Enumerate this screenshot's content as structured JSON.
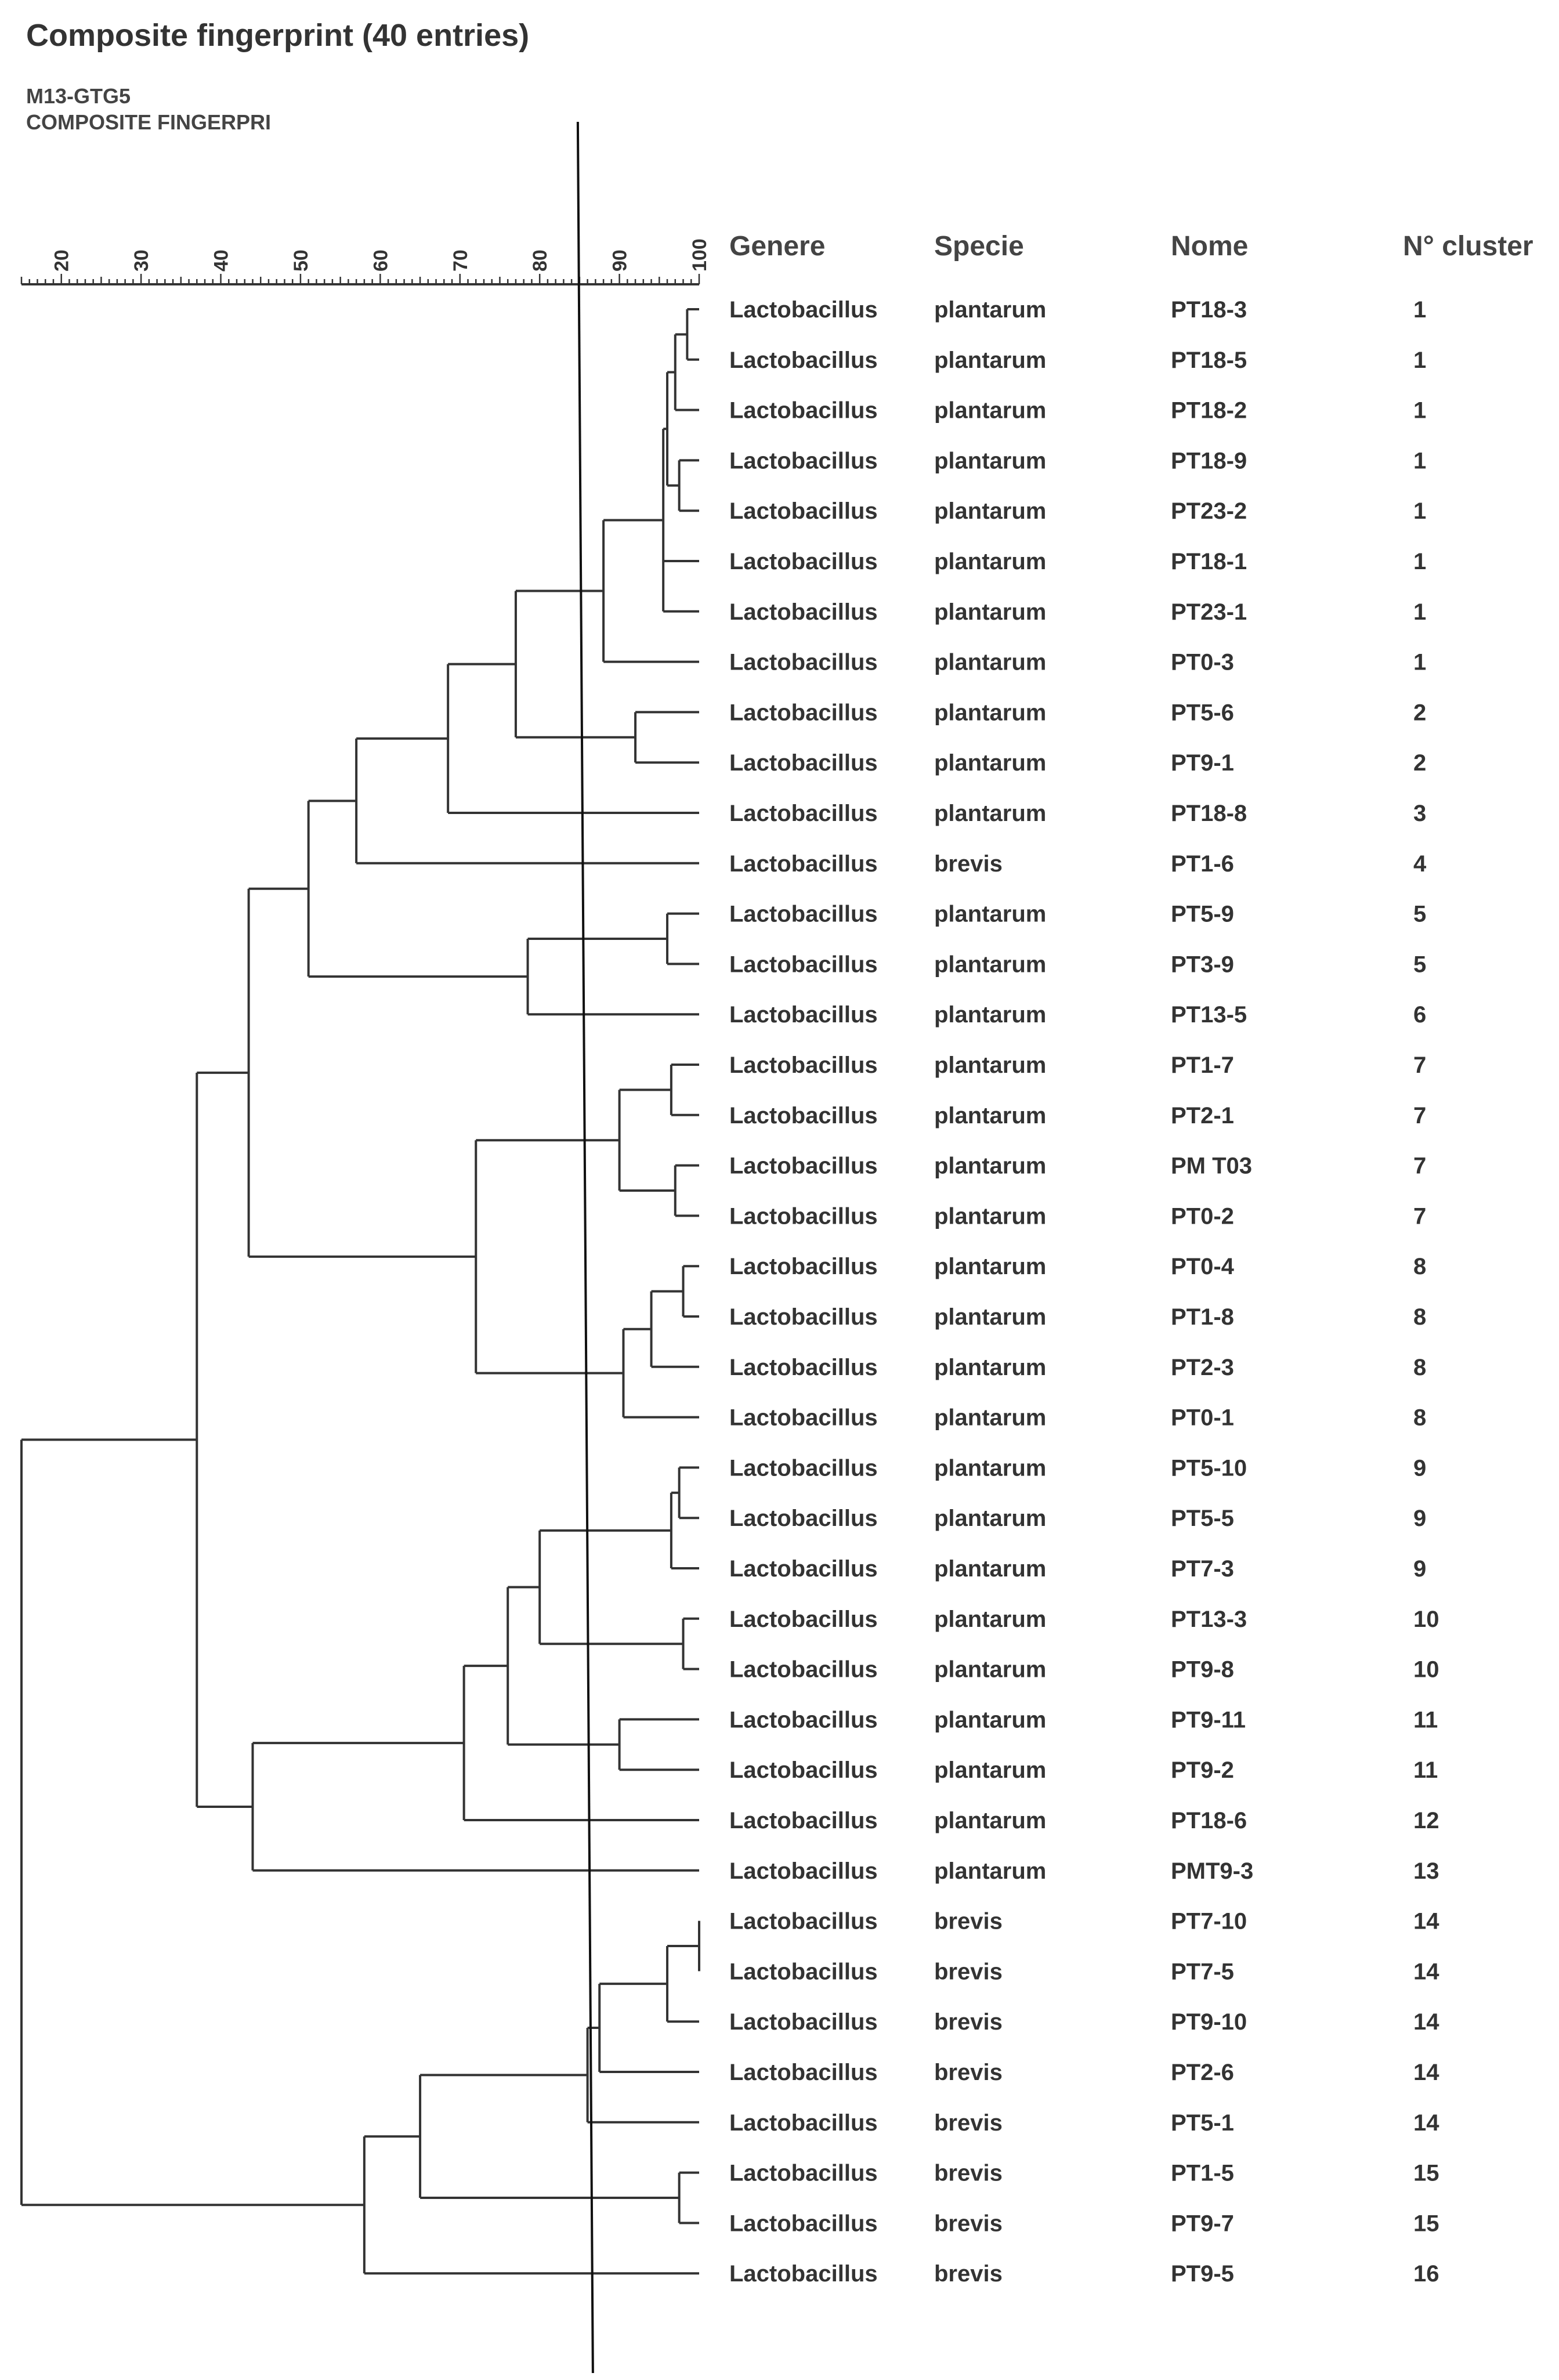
{
  "header": {
    "title": "Composite fingerprint (40 entries)",
    "subtitle_1": "M13-GTG5",
    "subtitle_2": "COMPOSITE FINGERPRI"
  },
  "columns": [
    "Genere",
    "Specie",
    "Nome",
    "N° cluster"
  ],
  "axis": {
    "min": 15,
    "max": 100,
    "ticks": [
      20,
      30,
      40,
      50,
      60,
      70,
      80,
      90,
      100
    ],
    "cutoff": 85
  },
  "entries": [
    {
      "genere": "Lactobacillus",
      "specie": "plantarum",
      "nome": "PT18-3",
      "cluster": "1"
    },
    {
      "genere": "Lactobacillus",
      "specie": "plantarum",
      "nome": "PT18-5",
      "cluster": "1"
    },
    {
      "genere": "Lactobacillus",
      "specie": "plantarum",
      "nome": "PT18-2",
      "cluster": "1"
    },
    {
      "genere": "Lactobacillus",
      "specie": "plantarum",
      "nome": "PT18-9",
      "cluster": "1"
    },
    {
      "genere": "Lactobacillus",
      "specie": "plantarum",
      "nome": "PT23-2",
      "cluster": "1"
    },
    {
      "genere": "Lactobacillus",
      "specie": "plantarum",
      "nome": "PT18-1",
      "cluster": "1"
    },
    {
      "genere": "Lactobacillus",
      "specie": "plantarum",
      "nome": "PT23-1",
      "cluster": "1"
    },
    {
      "genere": "Lactobacillus",
      "specie": "plantarum",
      "nome": "PT0-3",
      "cluster": "1"
    },
    {
      "genere": "Lactobacillus",
      "specie": "plantarum",
      "nome": "PT5-6",
      "cluster": "2"
    },
    {
      "genere": "Lactobacillus",
      "specie": "plantarum",
      "nome": "PT9-1",
      "cluster": "2"
    },
    {
      "genere": "Lactobacillus",
      "specie": "plantarum",
      "nome": "PT18-8",
      "cluster": "3"
    },
    {
      "genere": "Lactobacillus",
      "specie": "brevis",
      "nome": "PT1-6",
      "cluster": "4"
    },
    {
      "genere": "Lactobacillus",
      "specie": "plantarum",
      "nome": "PT5-9",
      "cluster": "5"
    },
    {
      "genere": "Lactobacillus",
      "specie": "plantarum",
      "nome": "PT3-9",
      "cluster": "5"
    },
    {
      "genere": "Lactobacillus",
      "specie": "plantarum",
      "nome": "PT13-5",
      "cluster": "6"
    },
    {
      "genere": "Lactobacillus",
      "specie": "plantarum",
      "nome": "PT1-7",
      "cluster": "7"
    },
    {
      "genere": "Lactobacillus",
      "specie": "plantarum",
      "nome": "PT2-1",
      "cluster": "7"
    },
    {
      "genere": "Lactobacillus",
      "specie": "plantarum",
      "nome": "PM T03",
      "cluster": "7"
    },
    {
      "genere": "Lactobacillus",
      "specie": "plantarum",
      "nome": "PT0-2",
      "cluster": "7"
    },
    {
      "genere": "Lactobacillus",
      "specie": "plantarum",
      "nome": "PT0-4",
      "cluster": "8"
    },
    {
      "genere": "Lactobacillus",
      "specie": "plantarum",
      "nome": "PT1-8",
      "cluster": "8"
    },
    {
      "genere": "Lactobacillus",
      "specie": "plantarum",
      "nome": "PT2-3",
      "cluster": "8"
    },
    {
      "genere": "Lactobacillus",
      "specie": "plantarum",
      "nome": "PT0-1",
      "cluster": "8"
    },
    {
      "genere": "Lactobacillus",
      "specie": "plantarum",
      "nome": "PT5-10",
      "cluster": "9"
    },
    {
      "genere": "Lactobacillus",
      "specie": "plantarum",
      "nome": "PT5-5",
      "cluster": "9"
    },
    {
      "genere": "Lactobacillus",
      "specie": "plantarum",
      "nome": "PT7-3",
      "cluster": "9"
    },
    {
      "genere": "Lactobacillus",
      "specie": "plantarum",
      "nome": "PT13-3",
      "cluster": "10"
    },
    {
      "genere": "Lactobacillus",
      "specie": "plantarum",
      "nome": "PT9-8",
      "cluster": "10"
    },
    {
      "genere": "Lactobacillus",
      "specie": "plantarum",
      "nome": "PT9-11",
      "cluster": "11"
    },
    {
      "genere": "Lactobacillus",
      "specie": "plantarum",
      "nome": "PT9-2",
      "cluster": "11"
    },
    {
      "genere": "Lactobacillus",
      "specie": "plantarum",
      "nome": "PT18-6",
      "cluster": "12"
    },
    {
      "genere": "Lactobacillus",
      "specie": "plantarum",
      "nome": "PMT9-3",
      "cluster": "13"
    },
    {
      "genere": "Lactobacillus",
      "specie": "brevis",
      "nome": "PT7-10",
      "cluster": "14"
    },
    {
      "genere": "Lactobacillus",
      "specie": "brevis",
      "nome": "PT7-5",
      "cluster": "14"
    },
    {
      "genere": "Lactobacillus",
      "specie": "brevis",
      "nome": "PT9-10",
      "cluster": "14"
    },
    {
      "genere": "Lactobacillus",
      "specie": "brevis",
      "nome": "PT2-6",
      "cluster": "14"
    },
    {
      "genere": "Lactobacillus",
      "specie": "brevis",
      "nome": "PT5-1",
      "cluster": "14"
    },
    {
      "genere": "Lactobacillus",
      "specie": "brevis",
      "nome": "PT1-5",
      "cluster": "15"
    },
    {
      "genere": "Lactobacillus",
      "specie": "brevis",
      "nome": "PT9-7",
      "cluster": "15"
    },
    {
      "genere": "Lactobacillus",
      "specie": "brevis",
      "nome": "PT9-5",
      "cluster": "16"
    }
  ],
  "dendrogram": [
    {
      "id": "n1",
      "sim": 98.5,
      "children": [
        0,
        1
      ]
    },
    {
      "id": "n2",
      "sim": 97,
      "children": [
        "n1",
        2
      ]
    },
    {
      "id": "n3",
      "sim": 97.5,
      "children": [
        3,
        4
      ]
    },
    {
      "id": "n4",
      "sim": 96,
      "children": [
        "n2",
        "n3"
      ]
    },
    {
      "id": "n5",
      "sim": 95.5,
      "children": [
        "n4",
        5,
        6
      ]
    },
    {
      "id": "n6",
      "sim": 88,
      "children": [
        "n5",
        7
      ]
    },
    {
      "id": "n7",
      "sim": 92,
      "children": [
        8,
        9
      ]
    },
    {
      "id": "n8",
      "sim": 77,
      "children": [
        "n6",
        "n7"
      ]
    },
    {
      "id": "n9",
      "sim": 68.5,
      "children": [
        "n8",
        10
      ]
    },
    {
      "id": "n10",
      "sim": 57,
      "children": [
        "n9",
        11
      ]
    },
    {
      "id": "n11",
      "sim": 96,
      "children": [
        12,
        13
      ]
    },
    {
      "id": "n12",
      "sim": 78.5,
      "children": [
        "n11",
        14
      ]
    },
    {
      "id": "n13",
      "sim": 51,
      "children": [
        "n10",
        "n12"
      ]
    },
    {
      "id": "n14",
      "sim": 96.5,
      "children": [
        15,
        16
      ]
    },
    {
      "id": "n15",
      "sim": 97,
      "children": [
        17,
        18
      ]
    },
    {
      "id": "n16",
      "sim": 90,
      "children": [
        "n14",
        "n15"
      ]
    },
    {
      "id": "n17",
      "sim": 98,
      "children": [
        19,
        20
      ]
    },
    {
      "id": "n18",
      "sim": 94,
      "children": [
        "n17",
        21
      ]
    },
    {
      "id": "n19",
      "sim": 90.5,
      "children": [
        "n18",
        22
      ]
    },
    {
      "id": "n20",
      "sim": 72,
      "children": [
        "n16",
        "n19"
      ]
    },
    {
      "id": "n21",
      "sim": 43.5,
      "children": [
        "n13",
        "n20"
      ]
    },
    {
      "id": "n22",
      "sim": 97.5,
      "children": [
        23,
        24
      ]
    },
    {
      "id": "n23",
      "sim": 96.5,
      "children": [
        "n22",
        25
      ]
    },
    {
      "id": "n24",
      "sim": 98,
      "children": [
        26,
        27
      ]
    },
    {
      "id": "n25",
      "sim": 80,
      "children": [
        "n23",
        "n24"
      ]
    },
    {
      "id": "n26",
      "sim": 90,
      "children": [
        28,
        29
      ]
    },
    {
      "id": "n27",
      "sim": 76,
      "children": [
        "n25",
        "n26"
      ]
    },
    {
      "id": "n28",
      "sim": 70.5,
      "children": [
        "n27",
        30
      ]
    },
    {
      "id": "n29",
      "sim": 44,
      "children": [
        "n28",
        31
      ]
    },
    {
      "id": "n30",
      "sim": 37,
      "children": [
        "n21",
        "n29"
      ]
    },
    {
      "id": "n31",
      "sim": 100,
      "children": [
        32,
        33
      ]
    },
    {
      "id": "n32",
      "sim": 96,
      "children": [
        "n31",
        34
      ]
    },
    {
      "id": "n33",
      "sim": 87.5,
      "children": [
        "n32",
        35
      ]
    },
    {
      "id": "n34",
      "sim": 86,
      "children": [
        "n33",
        36
      ]
    },
    {
      "id": "n35",
      "sim": 97.5,
      "children": [
        37,
        38
      ]
    },
    {
      "id": "n36",
      "sim": 65,
      "children": [
        "n34",
        "n35"
      ]
    },
    {
      "id": "n37",
      "sim": 58,
      "children": [
        "n36",
        39
      ]
    },
    {
      "id": "n38",
      "sim": 15,
      "children": [
        "n30",
        "n37"
      ]
    }
  ]
}
